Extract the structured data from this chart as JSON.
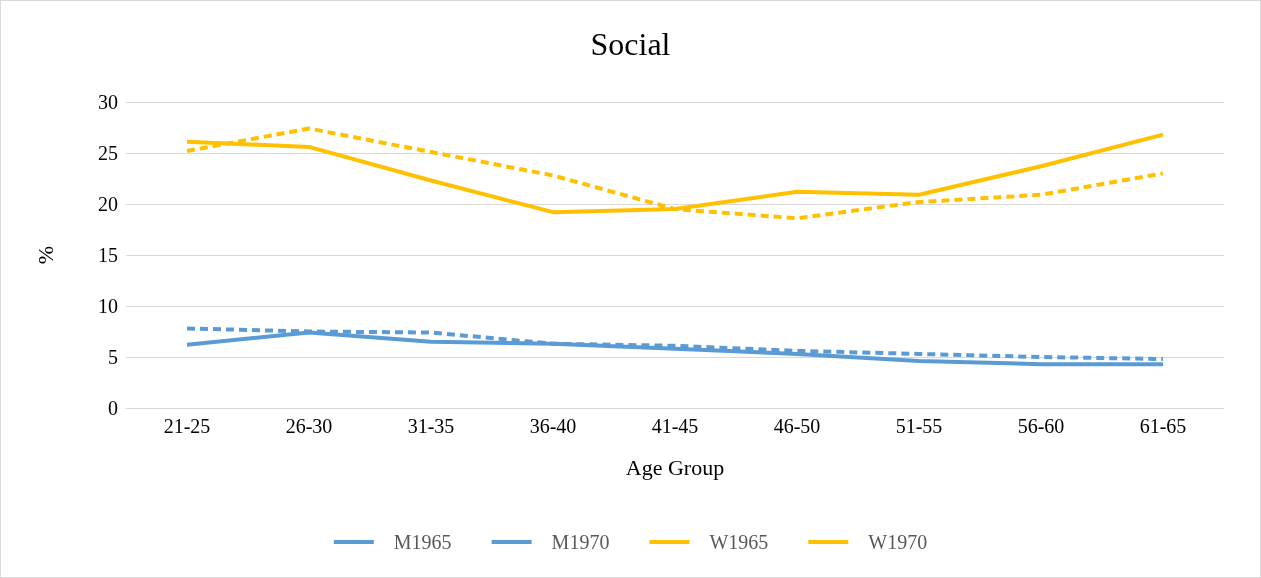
{
  "chart_data": {
    "type": "line",
    "title": "Social",
    "xlabel": "Age Group",
    "ylabel": "%",
    "categories": [
      "21-25",
      "26-30",
      "31-35",
      "36-40",
      "41-45",
      "46-50",
      "51-55",
      "56-60",
      "61-65"
    ],
    "series": [
      {
        "name": "M1965",
        "color": "#5b9bd5",
        "line_style": "solid",
        "values": [
          6.2,
          7.4,
          6.5,
          6.3,
          5.8,
          5.3,
          4.6,
          4.3,
          4.3
        ]
      },
      {
        "name": "M1970",
        "color": "#5b9bd5",
        "line_style": "dashed",
        "values": [
          7.8,
          7.5,
          7.4,
          6.3,
          6.1,
          5.6,
          5.3,
          5.0,
          4.8
        ]
      },
      {
        "name": "W1965",
        "color": "#ffc000",
        "line_style": "solid",
        "values": [
          26.1,
          25.6,
          22.3,
          19.2,
          19.5,
          21.2,
          20.9,
          23.7,
          26.8
        ]
      },
      {
        "name": "W1970",
        "color": "#ffc000",
        "line_style": "dashed",
        "values": [
          25.2,
          27.4,
          25.1,
          22.8,
          19.5,
          18.6,
          20.2,
          20.9,
          23.0
        ]
      }
    ],
    "ylim": [
      0,
      30
    ],
    "yticks": [
      0,
      5,
      10,
      15,
      20,
      25,
      30
    ],
    "grid": "y",
    "legend": "bottom",
    "marker": "none"
  }
}
